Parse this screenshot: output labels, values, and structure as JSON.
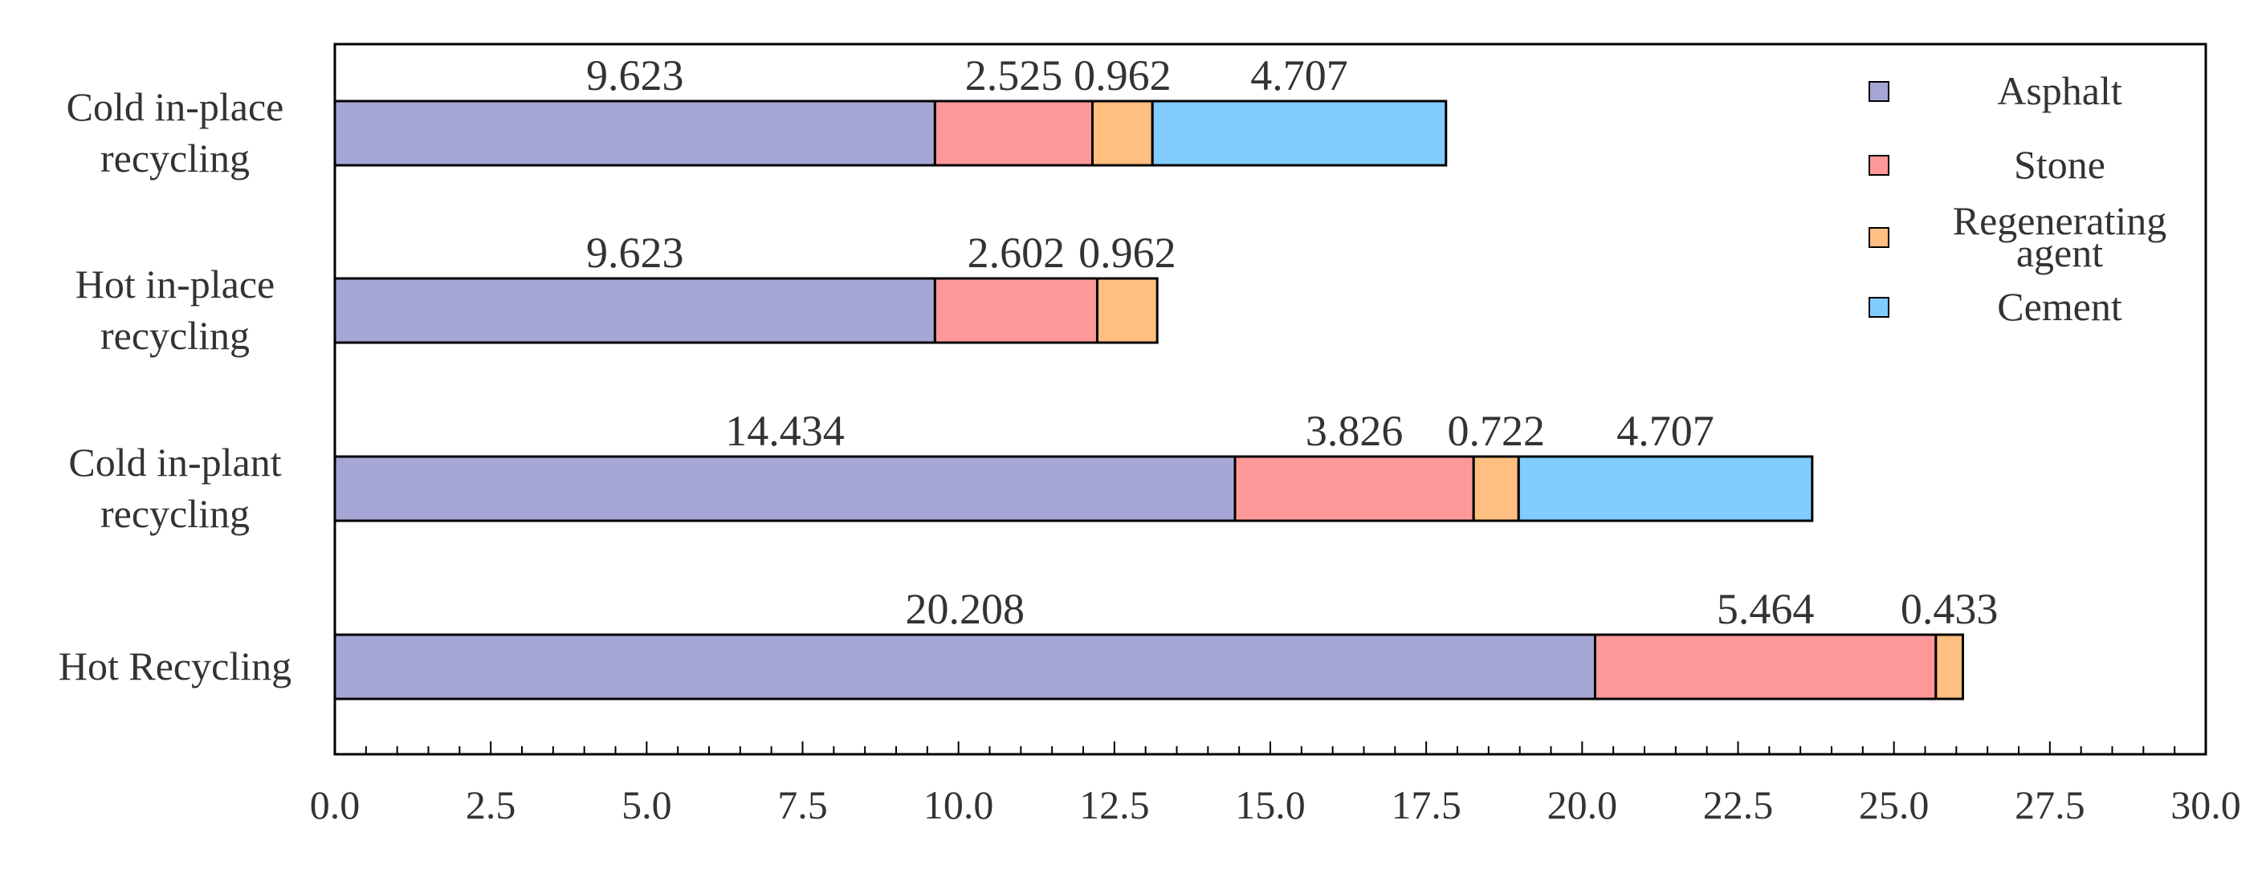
{
  "chart_data": {
    "type": "bar",
    "orientation": "horizontal",
    "stacked": true,
    "title": "",
    "xlabel": "",
    "ylabel": "",
    "xlim": [
      0,
      30
    ],
    "x_ticks": [
      "0.0",
      "2.5",
      "5.0",
      "7.5",
      "10.0",
      "12.5",
      "15.0",
      "17.5",
      "20.0",
      "22.5",
      "25.0",
      "27.5",
      "30.0"
    ],
    "grid": false,
    "legend_position": "top-right",
    "categories": [
      {
        "lines": [
          "Cold in-place",
          "recycling"
        ]
      },
      {
        "lines": [
          "Hot in-place",
          "recycling"
        ]
      },
      {
        "lines": [
          "Cold in-plant",
          "recycling"
        ]
      },
      {
        "lines": [
          "Hot Recycling"
        ]
      }
    ],
    "series": [
      {
        "name": "Asphalt",
        "legend_lines": [
          "Asphalt"
        ],
        "color": "#a6a6d6",
        "values": [
          9.623,
          9.623,
          14.434,
          20.208
        ],
        "labels": [
          "9.623",
          "9.623",
          "14.434",
          "20.208"
        ]
      },
      {
        "name": "Stone",
        "legend_lines": [
          "Stone"
        ],
        "color": "#ff9999",
        "values": [
          2.525,
          2.602,
          3.826,
          5.464
        ],
        "labels": [
          "2.525",
          "2.602",
          "3.826",
          "5.464"
        ]
      },
      {
        "name": "Regenerating agent",
        "legend_lines": [
          "Regenerating",
          "agent"
        ],
        "color": "#ffbf80",
        "values": [
          0.962,
          0.962,
          0.722,
          0.433
        ],
        "labels": [
          "0.962",
          "0.962",
          "0.722",
          "0.433"
        ]
      },
      {
        "name": "Cement",
        "legend_lines": [
          "Cement"
        ],
        "color": "#80ccff",
        "values": [
          4.707,
          0,
          4.707,
          0
        ],
        "labels": [
          "4.707",
          "",
          "4.707",
          ""
        ]
      }
    ]
  }
}
